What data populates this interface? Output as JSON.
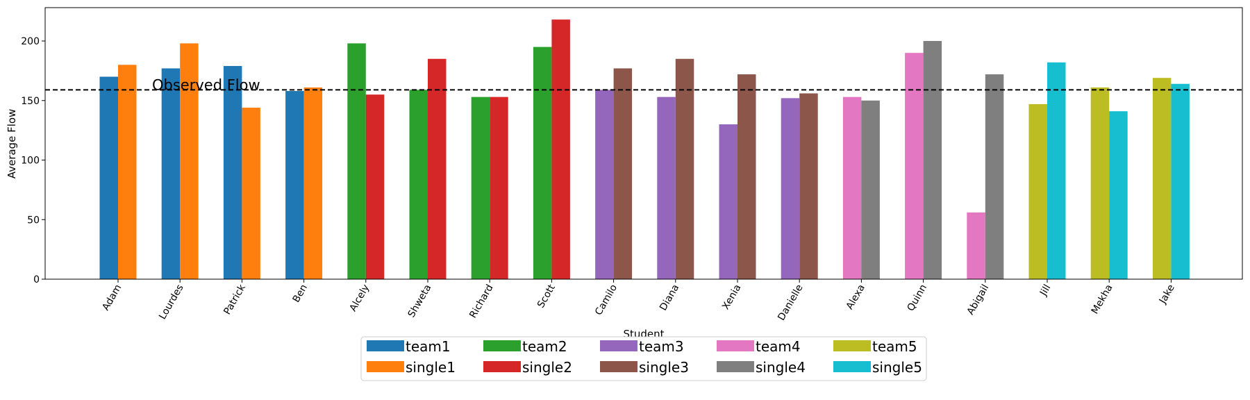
{
  "chart_data": {
    "type": "bar",
    "title": "",
    "xlabel": "Student",
    "ylabel": "Average Flow",
    "ylim": [
      0,
      218
    ],
    "yticks": [
      0,
      50,
      100,
      150,
      200
    ],
    "grid": false,
    "legend_position": "below",
    "reference_line": {
      "value": 159,
      "label": "Observed Flow",
      "style": "dashed"
    },
    "groups": [
      {
        "category": "Adam",
        "team_series": "team1",
        "team_value": 170,
        "single_series": "single1",
        "single_value": 180
      },
      {
        "category": "Lourdes",
        "team_series": "team1",
        "team_value": 177,
        "single_series": "single1",
        "single_value": 198
      },
      {
        "category": "Patrick",
        "team_series": "team1",
        "team_value": 179,
        "single_series": "single1",
        "single_value": 144
      },
      {
        "category": "Ben",
        "team_series": "team1",
        "team_value": 158,
        "single_series": "single1",
        "single_value": 161
      },
      {
        "category": "Alcely",
        "team_series": "team2",
        "team_value": 198,
        "single_series": "single2",
        "single_value": 155
      },
      {
        "category": "Shweta",
        "team_series": "team2",
        "team_value": 159,
        "single_series": "single2",
        "single_value": 185
      },
      {
        "category": "Richard",
        "team_series": "team2",
        "team_value": 153,
        "single_series": "single2",
        "single_value": 153
      },
      {
        "category": "Scott",
        "team_series": "team2",
        "team_value": 195,
        "single_series": "single2",
        "single_value": 218
      },
      {
        "category": "Camilo",
        "team_series": "team3",
        "team_value": 159,
        "single_series": "single3",
        "single_value": 177
      },
      {
        "category": "Diana",
        "team_series": "team3",
        "team_value": 153,
        "single_series": "single3",
        "single_value": 185
      },
      {
        "category": "Xenia",
        "team_series": "team3",
        "team_value": 130,
        "single_series": "single3",
        "single_value": 172
      },
      {
        "category": "Danielle",
        "team_series": "team3",
        "team_value": 152,
        "single_series": "single3",
        "single_value": 156
      },
      {
        "category": "Alexa",
        "team_series": "team4",
        "team_value": 153,
        "single_series": "single4",
        "single_value": 150
      },
      {
        "category": "Quinn",
        "team_series": "team4",
        "team_value": 190,
        "single_series": "single4",
        "single_value": 200
      },
      {
        "category": "Abigail",
        "team_series": "team4",
        "team_value": 56,
        "single_series": "single4",
        "single_value": 172
      },
      {
        "category": "Jill",
        "team_series": "team5",
        "team_value": 147,
        "single_series": "single5",
        "single_value": 182
      },
      {
        "category": "Mekha",
        "team_series": "team5",
        "team_value": 161,
        "single_series": "single5",
        "single_value": 141
      },
      {
        "category": "Jake",
        "team_series": "team5",
        "team_value": 169,
        "single_series": "single5",
        "single_value": 164
      }
    ],
    "series": [
      {
        "name": "team1",
        "color": "#1f77b4"
      },
      {
        "name": "single1",
        "color": "#ff7f0e"
      },
      {
        "name": "team2",
        "color": "#2ca02c"
      },
      {
        "name": "single2",
        "color": "#d62728"
      },
      {
        "name": "team3",
        "color": "#9467bd"
      },
      {
        "name": "single3",
        "color": "#8c564b"
      },
      {
        "name": "team4",
        "color": "#e377c2"
      },
      {
        "name": "single4",
        "color": "#7f7f7f"
      },
      {
        "name": "team5",
        "color": "#bcbd22"
      },
      {
        "name": "single5",
        "color": "#17becf"
      }
    ]
  }
}
